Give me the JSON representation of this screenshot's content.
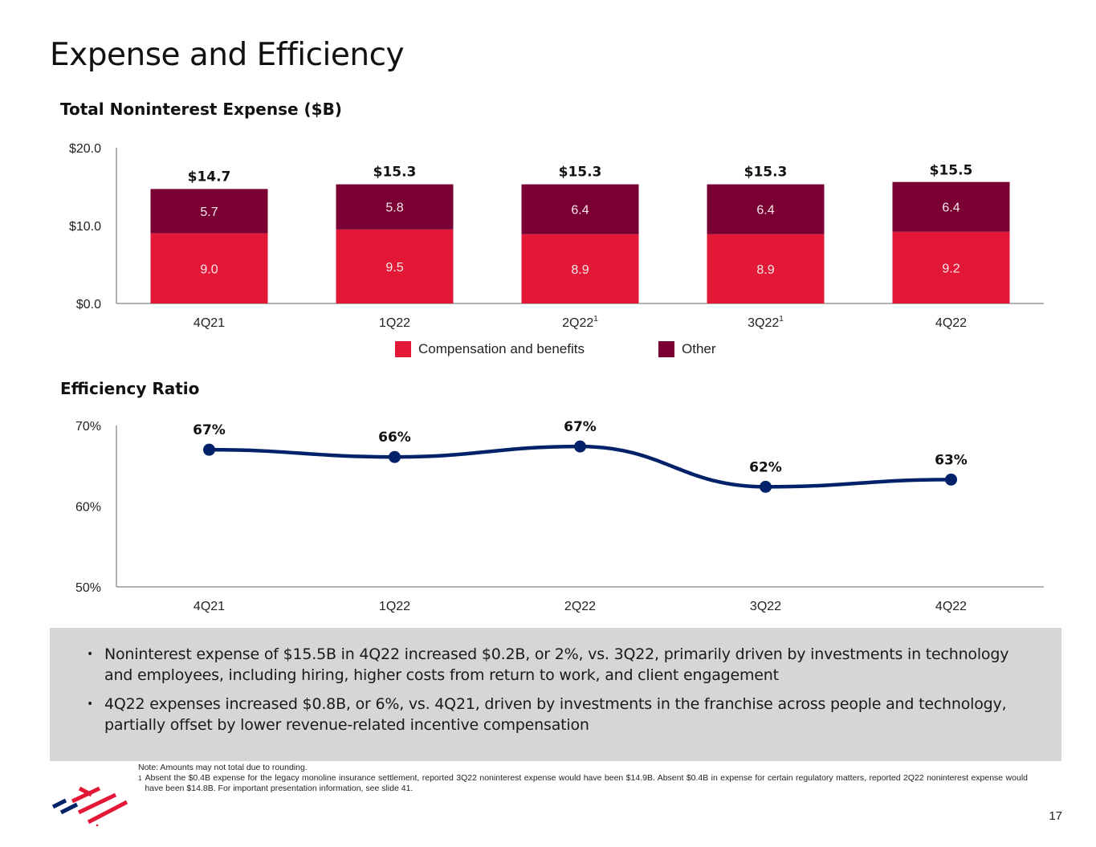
{
  "page": {
    "title": "Expense and Efficiency",
    "page_number": "17"
  },
  "colors": {
    "compensation": "#e31837",
    "other": "#7a0033",
    "line": "#012169",
    "axis": "#999999",
    "panel_bg": "#d6d6d6"
  },
  "chart_data": [
    {
      "type": "bar",
      "stacked": true,
      "title": "Total Noninterest Expense ($B)",
      "xlabel": "",
      "ylabel": "",
      "categories": [
        "4Q21",
        "1Q22",
        "2Q22",
        "3Q22",
        "4Q22"
      ],
      "category_footnotes": [
        "",
        "",
        "1",
        "1",
        ""
      ],
      "series": [
        {
          "name": "Compensation and benefits",
          "values": [
            9.0,
            9.5,
            8.9,
            8.9,
            9.2
          ],
          "labels": [
            "9.0",
            "9.5",
            "8.9",
            "8.9",
            "9.2"
          ]
        },
        {
          "name": "Other",
          "values": [
            5.7,
            5.8,
            6.4,
            6.4,
            6.4
          ],
          "labels": [
            "5.7",
            "5.8",
            "6.4",
            "6.4",
            "6.4"
          ]
        }
      ],
      "totals": [
        14.7,
        15.3,
        15.3,
        15.3,
        15.5
      ],
      "total_labels": [
        "$14.7",
        "$15.3",
        "$15.3",
        "$15.3",
        "$15.5"
      ],
      "yticks": [
        "$0.0",
        "$10.0",
        "$20.0"
      ],
      "ytick_values": [
        0,
        10,
        20
      ],
      "ylim": [
        0,
        20
      ],
      "grid": false,
      "legend": "bottom-center"
    },
    {
      "type": "line",
      "title": "Efficiency Ratio",
      "xlabel": "",
      "ylabel": "",
      "categories": [
        "4Q21",
        "1Q22",
        "2Q22",
        "3Q22",
        "4Q22"
      ],
      "series": [
        {
          "name": "Efficiency Ratio",
          "values": [
            67.0,
            66.1,
            67.4,
            62.4,
            63.3
          ],
          "labels": [
            "67%",
            "66%",
            "67%",
            "62%",
            "63%"
          ]
        }
      ],
      "yticks": [
        "50%",
        "60%",
        "70%"
      ],
      "ytick_values": [
        50,
        60,
        70
      ],
      "ylim": [
        50,
        70
      ],
      "grid": false,
      "smooth": true
    }
  ],
  "legend": {
    "compensation": "Compensation and benefits",
    "other": "Other"
  },
  "bullets": [
    "Noninterest expense of $15.5B in 4Q22 increased $0.2B, or 2%, vs. 3Q22, primarily driven by investments in technology and employees, including hiring, higher costs from return to work, and client engagement",
    "4Q22 expenses increased $0.8B, or 6%, vs. 4Q21, driven by investments in the franchise across people and technology, partially offset by lower revenue-related incentive compensation"
  ],
  "bullet_marker": "•",
  "notes": {
    "note": "Note: Amounts may not total due to rounding.",
    "footnote_marker": "1",
    "footnote": "Absent the $0.4B expense for the legacy monoline insurance settlement, reported 3Q22 noninterest expense would have been $14.9B. Absent $0.4B in expense for certain regulatory matters, reported 2Q22 noninterest expense would have been $14.8B. For important presentation information, see slide 41."
  },
  "logo": {
    "name": "Bank of America flagscape logo"
  }
}
